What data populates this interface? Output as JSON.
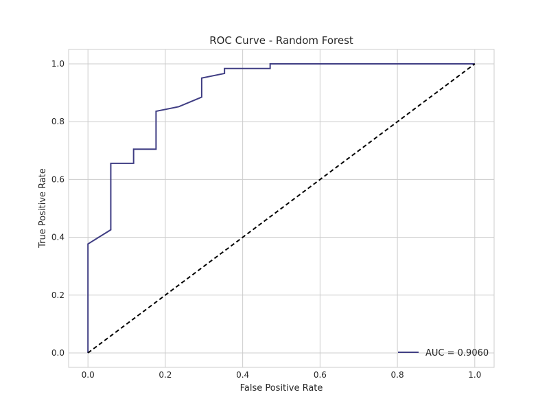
{
  "chart_data": {
    "type": "line",
    "title": "ROC Curve - Random Forest",
    "xlabel": "False Positive Rate",
    "ylabel": "True Positive Rate",
    "xlim": [
      -0.05,
      1.05
    ],
    "ylim": [
      -0.05,
      1.05
    ],
    "xticks": [
      0.0,
      0.2,
      0.4,
      0.6,
      0.8,
      1.0
    ],
    "yticks": [
      0.0,
      0.2,
      0.4,
      0.6,
      0.8,
      1.0
    ],
    "xtick_labels": [
      "0.0",
      "0.2",
      "0.4",
      "0.6",
      "0.8",
      "1.0"
    ],
    "ytick_labels": [
      "0.0",
      "0.2",
      "0.4",
      "0.6",
      "0.8",
      "1.0"
    ],
    "grid": true,
    "legend_position": "lower-right",
    "series": [
      {
        "name": "AUC = 0.9060",
        "color": "#3f3d83",
        "style": "solid",
        "x": [
          0.0,
          0.0,
          0.059,
          0.059,
          0.118,
          0.118,
          0.176,
          0.176,
          0.235,
          0.294,
          0.294,
          0.353,
          0.353,
          0.471,
          0.471,
          1.0
        ],
        "y": [
          0.0,
          0.377,
          0.426,
          0.656,
          0.656,
          0.705,
          0.705,
          0.836,
          0.852,
          0.885,
          0.951,
          0.967,
          0.984,
          0.984,
          1.0,
          1.0
        ]
      },
      {
        "color": "#000000",
        "style": "dashed",
        "x": [
          0.0,
          1.0
        ],
        "y": [
          0.0,
          1.0
        ]
      }
    ]
  }
}
